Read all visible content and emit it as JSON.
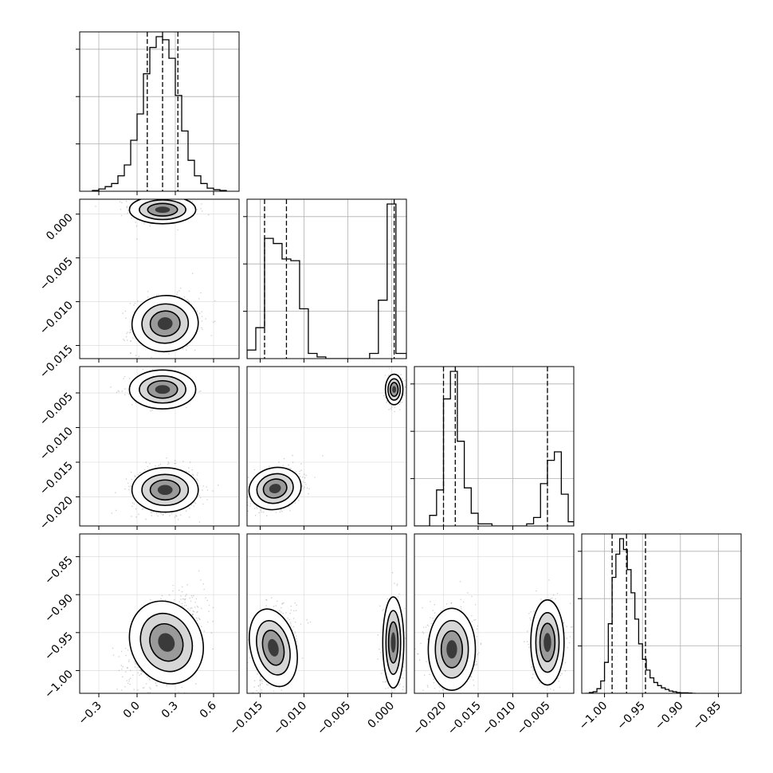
{
  "chart_data": {
    "type": "corner",
    "parameters": [
      {
        "id": "p0",
        "range": [
          -0.45,
          0.8
        ],
        "ticks": [
          -0.3,
          0.0,
          0.3,
          0.6
        ],
        "tick_labels": [
          "−0.3",
          "0.0",
          "0.3",
          "0.6"
        ],
        "quantiles": [
          0.08,
          0.2,
          0.32
        ],
        "hist": {
          "edges": [
            -0.35,
            -0.3,
            -0.25,
            -0.2,
            -0.15,
            -0.1,
            -0.05,
            0.0,
            0.05,
            0.1,
            0.15,
            0.2,
            0.25,
            0.3,
            0.35,
            0.4,
            0.45,
            0.5,
            0.55,
            0.6,
            0.65,
            0.7
          ],
          "counts": [
            0.5,
            1.5,
            3,
            5,
            10,
            17,
            33,
            50,
            76,
            93,
            100,
            98,
            86,
            62,
            39,
            20,
            10,
            5,
            2,
            1,
            0.5
          ]
        }
      },
      {
        "id": "p1",
        "range": [
          -0.0165,
          0.0017
        ],
        "ticks": [
          -0.015,
          -0.01,
          -0.005,
          0.0
        ],
        "tick_labels": [
          "−0.015",
          "−0.010",
          "−0.005",
          "0.000"
        ],
        "quantiles": [
          -0.0145,
          -0.012,
          0.0003
        ],
        "hist": {
          "edges": [
            -0.0165,
            -0.0155,
            -0.0145,
            -0.0135,
            -0.0125,
            -0.0115,
            -0.0105,
            -0.0095,
            -0.0085,
            -0.0075,
            -0.0065,
            -0.0055,
            -0.0045,
            -0.0035,
            -0.0025,
            -0.0015,
            -0.0005,
            0.0005,
            0.0015,
            0.0017
          ],
          "counts": [
            5,
            18,
            70,
            67,
            58,
            57,
            29,
            3,
            1,
            0,
            0,
            0,
            0,
            0,
            3,
            34,
            90,
            3,
            3
          ]
        }
      },
      {
        "id": "p2",
        "range": [
          -0.0242,
          -0.0012
        ],
        "ticks": [
          -0.02,
          -0.015,
          -0.01,
          -0.005
        ],
        "tick_labels": [
          "−0.020",
          "−0.015",
          "−0.010",
          "−0.005"
        ],
        "quantiles": [
          -0.02,
          -0.0183,
          -0.005
        ],
        "hist": {
          "edges": [
            -0.0242,
            -0.023,
            -0.022,
            -0.021,
            -0.02,
            -0.019,
            -0.018,
            -0.017,
            -0.016,
            -0.015,
            -0.014,
            -0.013,
            -0.012,
            -0.011,
            -0.01,
            -0.009,
            -0.008,
            -0.007,
            -0.006,
            -0.005,
            -0.004,
            -0.003,
            -0.002,
            -0.0012
          ],
          "counts": [
            0,
            0,
            5,
            17,
            60,
            73,
            40,
            18,
            6,
            1,
            1,
            0,
            0,
            0,
            0,
            0,
            1,
            4,
            20,
            31,
            35,
            15,
            2
          ]
        }
      },
      {
        "id": "p3",
        "range": [
          -1.03,
          -0.82
        ],
        "ticks": [
          -1.0,
          -0.95,
          -0.9,
          -0.85
        ],
        "tick_labels": [
          "−1.00",
          "−0.95",
          "−0.90",
          "−0.85"
        ],
        "quantiles": [
          -0.99,
          -0.971,
          -0.946
        ],
        "hist": {
          "edges": [
            -1.025,
            -1.02,
            -1.015,
            -1.01,
            -1.005,
            -1.0,
            -0.995,
            -0.99,
            -0.985,
            -0.98,
            -0.975,
            -0.97,
            -0.965,
            -0.96,
            -0.955,
            -0.95,
            -0.945,
            -0.94,
            -0.935,
            -0.93,
            -0.925,
            -0.92,
            -0.915,
            -0.91,
            -0.905,
            -0.9,
            -0.895,
            -0.89,
            -0.885,
            -0.88
          ],
          "counts": [
            0,
            0.5,
            1,
            3,
            8,
            20,
            45,
            75,
            90,
            100,
            93,
            80,
            65,
            48,
            32,
            22,
            15,
            10,
            7,
            5,
            3.5,
            2.5,
            1.5,
            1,
            0.5,
            0.3,
            0.3,
            0.2,
            0
          ]
        }
      }
    ],
    "blobs": {
      "1-0": [
        {
          "cx": 0.2,
          "cy": 0.0005,
          "sx": 0.13,
          "sy": 0.0008,
          "rho": 0.0,
          "w": 0.45
        },
        {
          "cx": 0.22,
          "cy": -0.0125,
          "sx": 0.13,
          "sy": 0.0016,
          "rho": 0.1,
          "w": 0.55
        }
      ],
      "2-0": [
        {
          "cx": 0.2,
          "cy": -0.0045,
          "sx": 0.13,
          "sy": 0.0014,
          "rho": 0.0,
          "w": 0.3
        },
        {
          "cx": 0.22,
          "cy": -0.019,
          "sx": 0.13,
          "sy": 0.0016,
          "rho": 0.0,
          "w": 0.7
        }
      ],
      "2-1": [
        {
          "cx": 0.0003,
          "cy": -0.0045,
          "sx": 0.0005,
          "sy": 0.0011,
          "rho": 0.0,
          "w": 0.35
        },
        {
          "cx": -0.0133,
          "cy": -0.0188,
          "sx": 0.0015,
          "sy": 0.0015,
          "rho": 0.3,
          "w": 0.65
        }
      ],
      "3-0": [
        {
          "cx": 0.23,
          "cy": -0.963,
          "sx": 0.14,
          "sy": 0.028,
          "rho": 0.55,
          "w": 1.0
        }
      ],
      "3-1": [
        {
          "cx": -0.0135,
          "cy": -0.97,
          "sx": 0.0013,
          "sy": 0.026,
          "rho": 0.3,
          "w": 0.65
        },
        {
          "cx": 0.0002,
          "cy": -0.963,
          "sx": 0.0006,
          "sy": 0.03,
          "rho": 0.0,
          "w": 0.35
        }
      ],
      "3-2": [
        {
          "cx": -0.0188,
          "cy": -0.972,
          "sx": 0.0017,
          "sy": 0.027,
          "rho": 0.0,
          "w": 0.65
        },
        {
          "cx": -0.005,
          "cy": -0.963,
          "sx": 0.0012,
          "sy": 0.028,
          "rho": 0.0,
          "w": 0.35
        }
      ]
    },
    "grid": true,
    "quantile_line_style": "dashed"
  }
}
